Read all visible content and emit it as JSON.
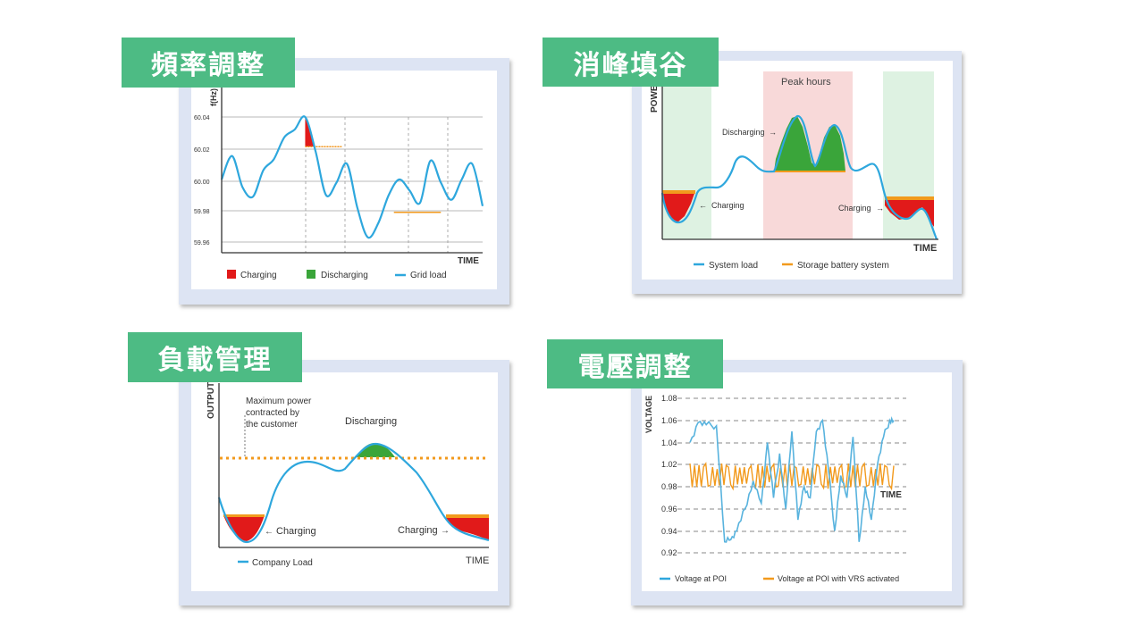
{
  "colors": {
    "tag_bg": "#4dbb84",
    "panel_border": "#dde4f3",
    "line": "#2ea7dd",
    "charging": "#e11a1a",
    "discharging": "#3aa53a",
    "storage": "#f29a1d",
    "gridline": "#b5b5b5",
    "peak_band": "#f8d9d9",
    "offpeak_band": "#def2e2"
  },
  "panels": {
    "freq": {
      "title": "頻率調整",
      "ylabel": "f(Hz)",
      "xlabel": "TIME",
      "legend": {
        "charging": "Charging",
        "discharging": "Discharging",
        "line": "Grid load"
      }
    },
    "peak": {
      "title": "消峰填谷",
      "ylabel": "POWER",
      "xlabel": "TIME",
      "peak_label": "Peak hours",
      "discharging_label": "Discharging",
      "charging_left_label": "Charging",
      "charging_right_label": "Charging",
      "legend": {
        "line": "System load",
        "storage": "Storage battery system"
      }
    },
    "load": {
      "title": "負載管理",
      "ylabel": "OUTPUT",
      "xlabel": "TIME",
      "max_line1": "Maximum power",
      "max_line2": "contracted by",
      "max_line3": "the customer",
      "discharging_label": "Discharging",
      "charging_left_label": "Charging",
      "charging_right_label": "Charging",
      "legend": {
        "line": "Company Load"
      }
    },
    "volt": {
      "title": "電壓調整",
      "ylabel": "VOLTAGE",
      "xlabel": "TIME",
      "legend": {
        "poi": "Voltage at POI",
        "vrs": "Voltage at POI with VRS activated"
      }
    }
  },
  "chart_data": [
    {
      "type": "line",
      "title": "頻率調整",
      "ylabel": "f(Hz)",
      "xlabel": "TIME",
      "y_ticks": [
        "60.04",
        "60.02",
        "60.00",
        "59.98",
        "59.96"
      ],
      "ylim": [
        59.955,
        60.045
      ],
      "series": [
        {
          "name": "Grid load",
          "x": [
            0,
            4,
            8,
            12,
            16,
            20,
            24,
            28,
            32,
            36,
            40,
            44,
            48,
            52,
            56,
            60,
            64,
            68,
            72,
            76,
            80,
            84,
            88,
            92,
            96,
            100
          ],
          "values": [
            60.0,
            60.015,
            59.995,
            59.989,
            60.006,
            60.013,
            60.027,
            60.032,
            60.04,
            60.018,
            59.99,
            59.998,
            60.01,
            59.982,
            59.963,
            59.972,
            59.99,
            60.0,
            59.993,
            59.985,
            60.012,
            59.998,
            59.987,
            60.0,
            60.01,
            59.983
          ]
        }
      ],
      "charging_threshold": 60.021,
      "discharging_threshold": 59.979,
      "grid": true,
      "legend": [
        "Charging",
        "Discharging",
        "Grid load"
      ]
    },
    {
      "type": "line",
      "title": "消峰填谷",
      "ylabel": "POWER",
      "xlabel": "TIME",
      "series": [
        {
          "name": "System load"
        },
        {
          "name": "Storage battery system"
        }
      ],
      "bands": [
        "off-peak",
        "Peak hours",
        "off-peak"
      ],
      "annotations": [
        "Peak hours",
        "Discharging",
        "Charging",
        "Charging"
      ],
      "legend": [
        "System load",
        "Storage battery system"
      ]
    },
    {
      "type": "line",
      "title": "負載管理",
      "ylabel": "OUTPUT",
      "xlabel": "TIME",
      "series": [
        {
          "name": "Company Load"
        }
      ],
      "annotations": [
        "Maximum power contracted by the customer",
        "Discharging",
        "Charging",
        "Charging"
      ],
      "legend": [
        "Company Load"
      ]
    },
    {
      "type": "line",
      "title": "電壓調整",
      "ylabel": "VOLTAGE",
      "xlabel": "TIME",
      "y_ticks": [
        "1.08",
        "1.06",
        "1.04",
        "1.02",
        "0.98",
        "0.96",
        "0.94",
        "0.92"
      ],
      "ylim": [
        0.92,
        1.08
      ],
      "series": [
        {
          "name": "Voltage at POI",
          "x": [
            0,
            4,
            8,
            13,
            17,
            20,
            23,
            27,
            31,
            35,
            38,
            41,
            44,
            47,
            50,
            53,
            56,
            59,
            62,
            65,
            68,
            71,
            74,
            77,
            80,
            83,
            86,
            89,
            92,
            95,
            98,
            100
          ],
          "values": [
            1.04,
            1.058,
            1.056,
            1.055,
            0.93,
            0.932,
            0.94,
            0.96,
            1.005,
            0.965,
            1.04,
            0.97,
            1.03,
            0.96,
            1.05,
            0.95,
            1.0,
            0.97,
            1.05,
            1.06,
            0.995,
            0.94,
            1.01,
            0.97,
            1.045,
            0.93,
            0.98,
            0.95,
            1.02,
            1.045,
            1.06,
            1.06
          ]
        },
        {
          "name": "Voltage at POI with VRS activated",
          "values": [
            0.999,
            1.0,
            0.998,
            1.001,
            0.999,
            1.002,
            0.998,
            0.999,
            1.001,
            1.0
          ]
        }
      ],
      "grid": true,
      "legend": [
        "Voltage at POI",
        "Voltage at POI with VRS activated"
      ]
    }
  ]
}
